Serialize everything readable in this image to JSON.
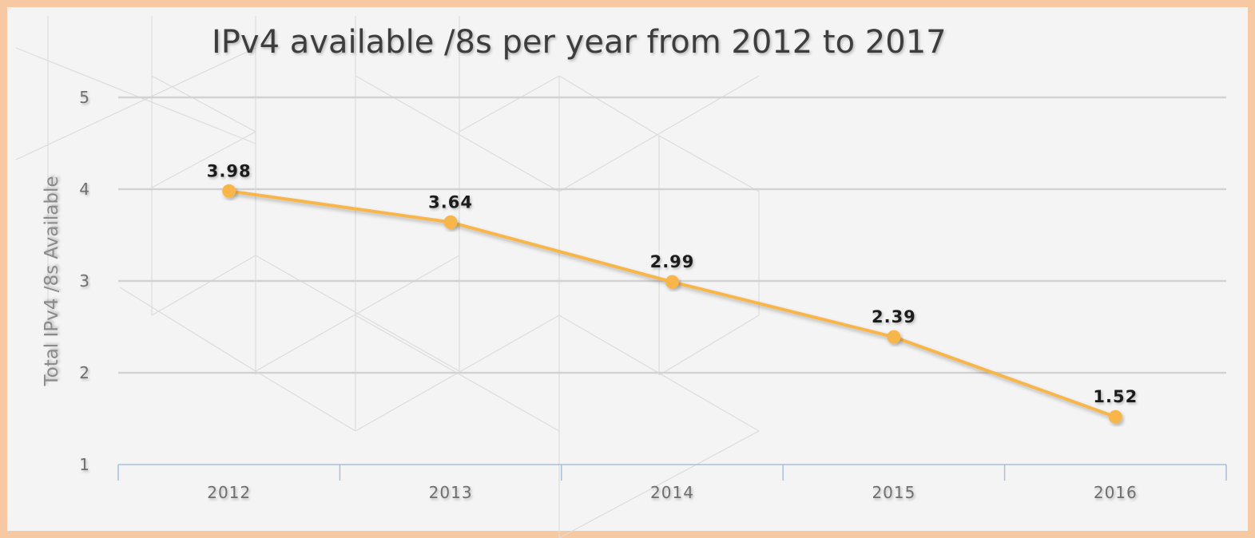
{
  "chart_data": {
    "type": "line",
    "title": "IPv4 available /8s per year from 2012 to 2017",
    "xlabel": "",
    "ylabel": "Total IPv4 /8s Available",
    "categories": [
      "2012",
      "2013",
      "2014",
      "2015",
      "2016"
    ],
    "series": [
      {
        "values": [
          3.98,
          3.64,
          2.99,
          2.39,
          1.52
        ],
        "data_labels": [
          "3.98",
          "3.64",
          "2.99",
          "2.39",
          "1.52"
        ],
        "color": "#f8b54a"
      }
    ],
    "ylim": [
      1,
      5
    ],
    "yticks": [
      1,
      2,
      3,
      4,
      5
    ],
    "ytick_labels": [
      "1",
      "2",
      "3",
      "4",
      "5"
    ],
    "grid": true,
    "legend": "none"
  },
  "colors": {
    "frame_border": "#f7c9a2",
    "background": "#f4f4f4",
    "line": "#f8b54a",
    "axis": "#a9bfd9"
  }
}
